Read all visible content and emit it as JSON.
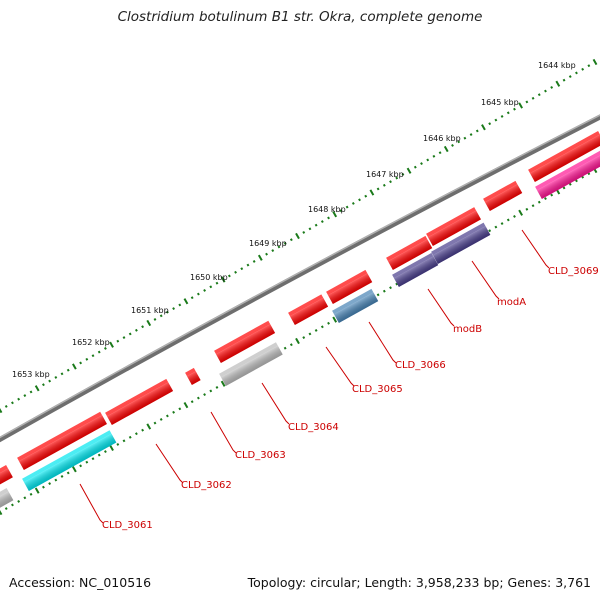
{
  "title": "Clostridium botulinum B1 str. Okra, complete genome",
  "footer": {
    "accession": "Accession: NC_010516",
    "summary": "Topology: circular; Length: 3,958,233 bp; Genes: 3,761"
  },
  "ticks": [
    "1644 kbp",
    "1645 kbp",
    "1646 kbp",
    "1647 kbp",
    "1648 kbp",
    "1649 kbp",
    "1650 kbp",
    "1651 kbp",
    "1652 kbp",
    "1653 kbp"
  ],
  "genes": [
    "CLD_3061",
    "CLD_3062",
    "CLD_3063",
    "CLD_3064",
    "CLD_3065",
    "CLD_3066",
    "modB",
    "modA",
    "CLD_3069"
  ],
  "colors": {
    "backbone": "#8a8a8a",
    "tick": "#1a7a1a",
    "gene_label": "#cc0000",
    "forward_cds": "#ff0000",
    "reverse_gray": "#bbbbbb",
    "reverse_cyan": "#00e5ee",
    "reverse_steelblue": "#4682b4",
    "reverse_navy": "#483d8b",
    "reverse_magenta": "#ff1493"
  }
}
